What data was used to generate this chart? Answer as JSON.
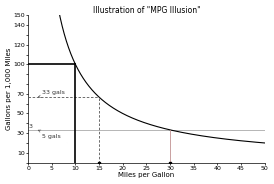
{
  "title": "Illustration of \"MPG Illusion\"",
  "xlabel": "Miles per Gallon",
  "ylabel": "Gallons per 1,000 Miles",
  "xlim": [
    0,
    50
  ],
  "ylim": [
    0,
    150
  ],
  "xticks": [
    0,
    5,
    10,
    15,
    20,
    25,
    30,
    35,
    40,
    45,
    50
  ],
  "yticks": [
    0,
    10,
    20,
    30,
    40,
    50,
    60,
    70,
    80,
    90,
    100,
    110,
    120,
    130,
    140,
    150
  ],
  "ytick_labels": [
    "",
    "10",
    "",
    "30",
    "",
    "50",
    "",
    "70",
    "",
    "",
    "100",
    "",
    "120",
    "",
    "140",
    "150"
  ],
  "mpg_10": 10,
  "mpg_15": 15,
  "mpg_30": 30,
  "gal_10": 100.0,
  "gal_15": 66.67,
  "gal_30": 33.33,
  "label_33gals": "33 gals",
  "label_5gals": "5 gals",
  "label_3": "3",
  "curve_color": "#000000",
  "vline_10_color": "#000000",
  "hline_100_color": "#000000",
  "dashed_color": "#555555",
  "hline_33_color": "#aaaaaa",
  "vline_30_color": "#c09090",
  "title_fontsize": 5.5,
  "axis_label_fontsize": 5,
  "tick_fontsize": 4.5,
  "annot_fontsize": 4.5
}
